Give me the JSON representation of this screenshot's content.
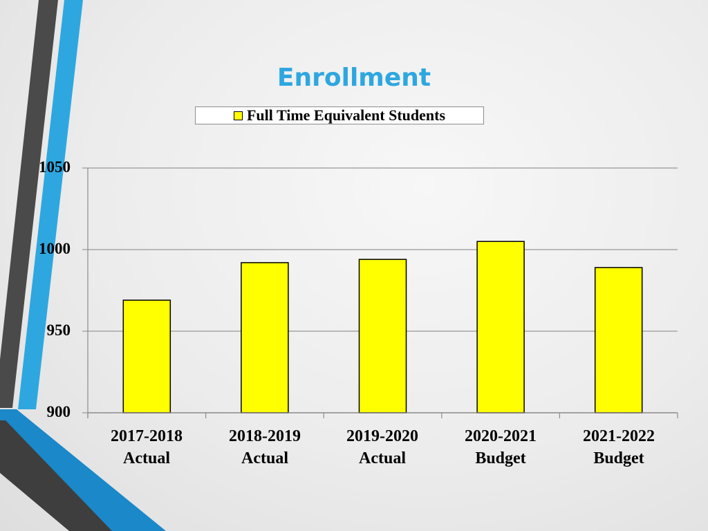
{
  "slide": {
    "title": "Enrollment",
    "accent_color": "#2ea7e0",
    "dark_stripe_color": "#4a4a4a"
  },
  "legend": {
    "label": "Full Time Equivalent Students",
    "swatch_color": "#ffff00"
  },
  "y_axis": {
    "ticks": [
      "1050",
      "1000",
      "950",
      "900"
    ]
  },
  "x_axis": {
    "categories": [
      {
        "line1": "2017-2018",
        "line2": "Actual"
      },
      {
        "line1": "2018-2019",
        "line2": "Actual"
      },
      {
        "line1": "2019-2020",
        "line2": "Actual"
      },
      {
        "line1": "2020-2021",
        "line2": "Budget"
      },
      {
        "line1": "2021-2022",
        "line2": "Budget"
      }
    ]
  },
  "chart_data": {
    "type": "bar",
    "title": "Enrollment",
    "categories": [
      "2017-2018 Actual",
      "2018-2019 Actual",
      "2019-2020 Actual",
      "2020-2021 Budget",
      "2021-2022 Budget"
    ],
    "series": [
      {
        "name": "Full Time Equivalent Students",
        "color": "#ffff00",
        "values": [
          969,
          992,
          994,
          1005,
          989
        ]
      }
    ],
    "xlabel": "",
    "ylabel": "",
    "ylim": [
      900,
      1050
    ],
    "yticks": [
      900,
      950,
      1000,
      1050
    ],
    "grid": true,
    "legend_position": "top"
  }
}
